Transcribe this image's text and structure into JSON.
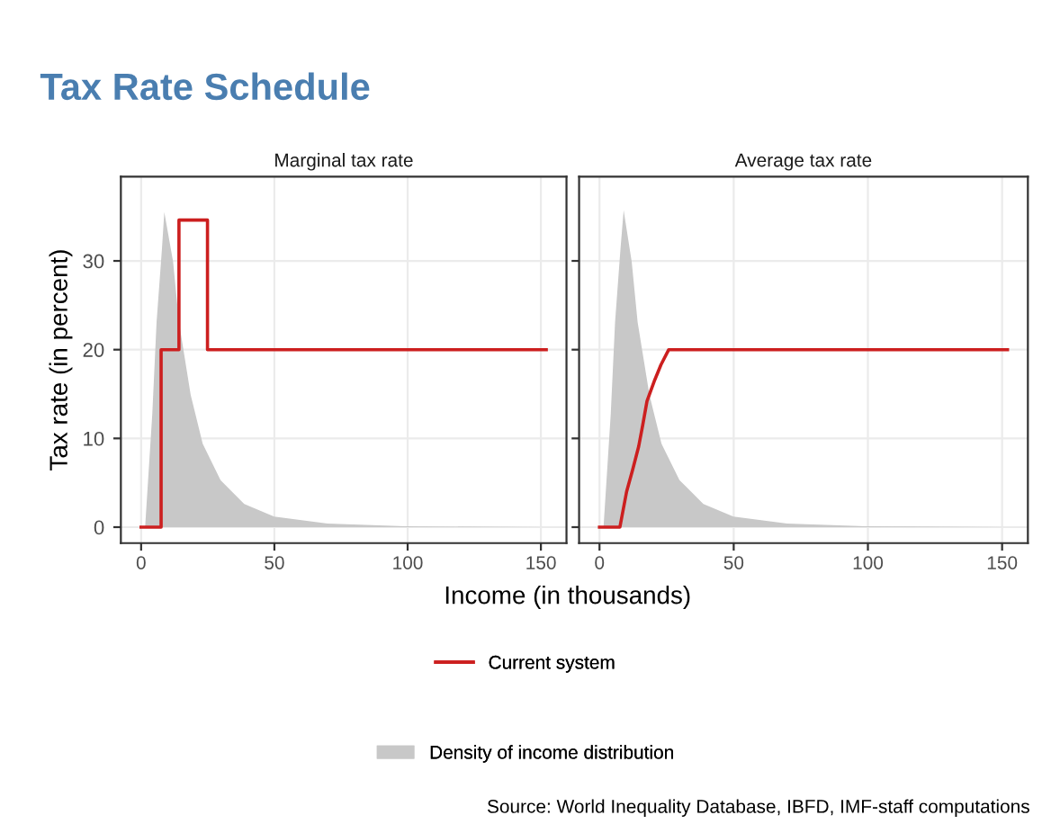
{
  "chart_data": [
    {
      "type": "step",
      "title": "Tax Rate Schedule",
      "subtitle": "Marginal tax rate",
      "xlabel": "Income (in thousands)",
      "ylabel": "Tax rate (in percent)",
      "xlim": [
        -7.6,
        159.6
      ],
      "xticks": [
        0,
        50,
        100,
        150
      ],
      "ylim": [
        -1.8,
        39.5
      ],
      "yticks": [
        0,
        10,
        20,
        30
      ],
      "grid": true,
      "legend": "bottom",
      "series": [
        {
          "name": "Density of income distribution",
          "type": "area",
          "color": "#c8c8c8",
          "x": [
            1.5,
            4.2,
            5.8,
            7.8,
            8.7,
            12.0,
            14.2,
            18.6,
            23.1,
            29.8,
            38.7,
            49.9,
            69.9,
            98.8,
            152
          ],
          "values": [
            0,
            12.8,
            23.1,
            31.3,
            35.5,
            29.9,
            23.1,
            14.9,
            9.4,
            5.3,
            2.6,
            1.2,
            0.4,
            0.1,
            0
          ]
        },
        {
          "name": "Current system",
          "color": "#cc1f1f",
          "x": [
            0,
            7.5,
            14.2,
            24.9,
            152
          ],
          "values": [
            0,
            20,
            34.6,
            20,
            20
          ]
        }
      ]
    },
    {
      "type": "line",
      "subtitle": "Average tax rate",
      "xlim": [
        -7.6,
        159.6
      ],
      "xticks": [
        0,
        50,
        100,
        150
      ],
      "ylim": [
        -1.8,
        39.5
      ],
      "yticks": [
        0,
        10,
        20,
        30
      ],
      "grid": true,
      "tick_labels": "x",
      "annotations": [
        "Source: World Inequality Database, IBFD, IMF-staff computations"
      ],
      "series": [
        {
          "type": "area",
          "color": "#c8c8c8",
          "x": [
            1.5,
            4.2,
            5.8,
            7.8,
            9.0,
            12.0,
            14.2,
            18.6,
            23.1,
            29.8,
            38.7,
            49.9,
            69.9,
            98.8,
            152
          ],
          "values": [
            0,
            12.8,
            23.1,
            31.3,
            35.7,
            29.9,
            23.1,
            14.9,
            9.4,
            5.3,
            2.6,
            1.2,
            0.4,
            0.1,
            0
          ]
        },
        {
          "color": "#cc1f1f",
          "x": [
            0,
            7.6,
            10.1,
            12.3,
            14.6,
            16.1,
            17.7,
            20.6,
            22.9,
            25.8,
            152
          ],
          "values": [
            0,
            0,
            4.0,
            6.4,
            9.1,
            11.5,
            14.2,
            16.6,
            18.3,
            20,
            20
          ]
        }
      ]
    }
  ]
}
